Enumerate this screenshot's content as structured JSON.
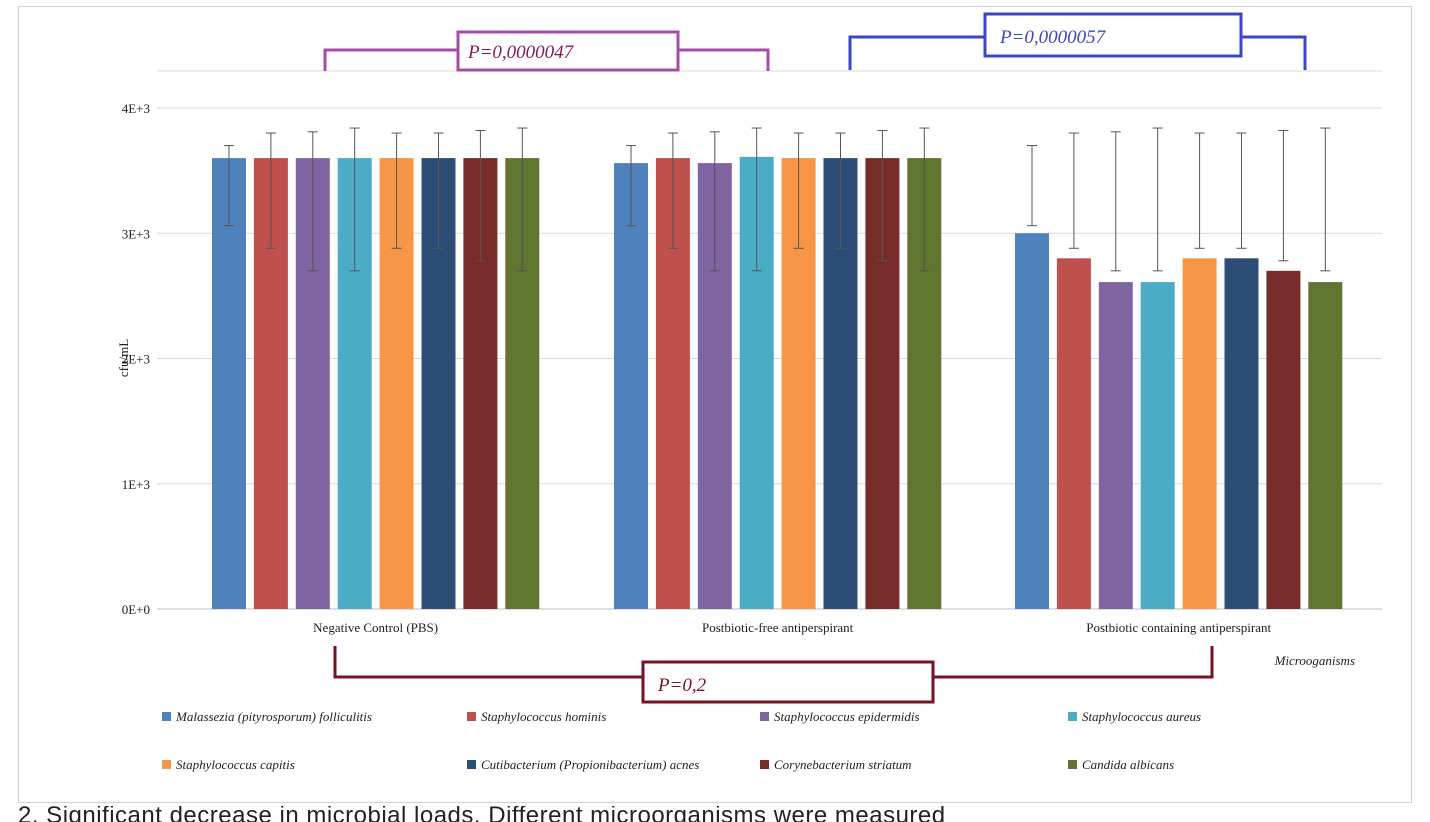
{
  "chart_data": {
    "type": "bar",
    "ylabel": "cfu/mL",
    "xlabel": "Microoganisms",
    "ylim": [
      0,
      4000
    ],
    "yticks": [
      {
        "value": 0,
        "label": "0E+0"
      },
      {
        "value": 1000,
        "label": "1E+3"
      },
      {
        "value": 2000,
        "label": "2E+3"
      },
      {
        "value": 3000,
        "label": "3E+3"
      },
      {
        "value": 4000,
        "label": "4E+3"
      }
    ],
    "grid": true,
    "legend_position": "bottom",
    "categories": [
      "Negative Control (PBS)",
      "Postbiotic-free antiperspirant",
      "Postbiotic containing antiperspirant"
    ],
    "series": [
      {
        "name": "Malassezia (pityrosporum) folliculitis",
        "color": "#4f81bd",
        "values": [
          3600,
          3560,
          3000
        ],
        "err_low": [
          3060,
          3060,
          3060
        ],
        "err_high": [
          3700,
          3700,
          3700
        ]
      },
      {
        "name": "Staphylococcus hominis",
        "color": "#c0504d",
        "values": [
          3600,
          3600,
          2800
        ],
        "err_low": [
          2880,
          2880,
          2880
        ],
        "err_high": [
          3800,
          3800,
          3800
        ]
      },
      {
        "name": "Staphylococcus epidermidis",
        "color": "#8064a2",
        "values": [
          3600,
          3560,
          2610
        ],
        "err_low": [
          2700,
          2700,
          2700
        ],
        "err_high": [
          3810,
          3810,
          3810
        ]
      },
      {
        "name": "Staphylococcus aureus",
        "color": "#4bacc6",
        "values": [
          3600,
          3610,
          2610
        ],
        "err_low": [
          2700,
          2700,
          2700
        ],
        "err_high": [
          3840,
          3840,
          3840
        ]
      },
      {
        "name": "Staphylococcus capitis",
        "color": "#f79646",
        "values": [
          3600,
          3600,
          2800
        ],
        "err_low": [
          2880,
          2880,
          2880
        ],
        "err_high": [
          3800,
          3800,
          3800
        ]
      },
      {
        "name": "Cutibacterium (Propionibacterium) acnes",
        "color": "#2c4d75",
        "values": [
          3600,
          3600,
          2800
        ],
        "err_low": [
          2880,
          2880,
          2880
        ],
        "err_high": [
          3800,
          3800,
          3800
        ]
      },
      {
        "name": "Corynebacterium striatum",
        "color": "#772c2a",
        "values": [
          3600,
          3600,
          2700
        ],
        "err_low": [
          2780,
          2780,
          2780
        ],
        "err_high": [
          3820,
          3820,
          3820
        ]
      },
      {
        "name": "Candida albicans",
        "color": "#5f7530",
        "values": [
          3600,
          3600,
          2610
        ],
        "err_low": [
          2700,
          2700,
          2700
        ],
        "err_high": [
          3840,
          3840,
          3840
        ]
      }
    ],
    "annotations": [
      {
        "label": "P=0,0000047",
        "color": "#a64ca6",
        "text_color": "#8b1a5a",
        "from_group": 0,
        "to_group": 1,
        "side": "top"
      },
      {
        "label": "P=0,0000057",
        "color": "#3b46c4",
        "text_color": "#3b46c4",
        "from_group": 1,
        "to_group": 2,
        "side": "top"
      },
      {
        "label": "P=0,2",
        "color": "#7a1024",
        "text_color": "#7a1024",
        "from_group": 0,
        "to_group": 2,
        "side": "bottom"
      }
    ]
  },
  "caption": "2. Significant decrease in microbial loads. Different microorganisms were measured"
}
